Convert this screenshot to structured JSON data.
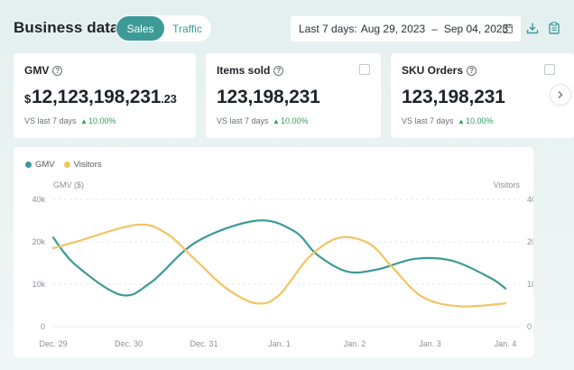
{
  "header": {
    "title": "Business data",
    "tabs": [
      {
        "label": "Sales",
        "active": true
      },
      {
        "label": "Traffic",
        "active": false
      }
    ],
    "date_range": {
      "prefix": "Last 7 days:",
      "start": "Aug 29, 2023",
      "separator": "–",
      "end": "Sep 04, 2023"
    },
    "icons": [
      "calendar-icon",
      "download-icon",
      "clipboard-icon"
    ]
  },
  "metrics": [
    {
      "title": "GMV",
      "currency": "$",
      "value": "12,123,198,231",
      "decimal": ".23",
      "compare_label": "VS last 7 days",
      "change": "10.00%",
      "selectable": false
    },
    {
      "title": "Items sold",
      "value": "123,198,231",
      "compare_label": "VS last 7 days",
      "change": "10.00%",
      "selectable": true
    },
    {
      "title": "SKU Orders",
      "value": "123,198,231",
      "compare_label": "VS last 7 days",
      "change": "10.00%",
      "selectable": true
    }
  ],
  "colors": {
    "accent": "#3d9a96",
    "gmv_line": "#3d9a96",
    "visitors_line": "#f2c462",
    "positive": "#2f9e5b"
  },
  "chart_data": {
    "type": "line",
    "legend": [
      "GMV",
      "Visitors"
    ],
    "legend_position": "top-left",
    "ylabel_left": "GMV ($)",
    "ylabel_right": "Visitors",
    "y_ticks": [
      "0",
      "10k",
      "20k",
      "40k"
    ],
    "ylim": [
      0,
      30000
    ],
    "grid": true,
    "x": [
      "Dec. 29",
      "Dec. 30",
      "Dec. 31",
      "Jan. 1",
      "Jan. 2",
      "Jan. 3",
      "Jan. 4"
    ],
    "series": [
      {
        "name": "GMV",
        "color": "#3d9a96",
        "points": [
          [
            0,
            21000
          ],
          [
            0.3,
            14500
          ],
          [
            0.9,
            7500
          ],
          [
            1.3,
            10500
          ],
          [
            1.9,
            20000
          ],
          [
            2.7,
            25000
          ],
          [
            3.2,
            22500
          ],
          [
            3.5,
            17000
          ],
          [
            3.9,
            13000
          ],
          [
            4.3,
            13500
          ],
          [
            4.8,
            16000
          ],
          [
            5.3,
            15500
          ],
          [
            5.8,
            11500
          ],
          [
            6,
            9000
          ]
        ]
      },
      {
        "name": "Visitors",
        "color": "#f2c462",
        "points": [
          [
            0,
            18500
          ],
          [
            0.3,
            20000
          ],
          [
            1.1,
            24000
          ],
          [
            1.5,
            22000
          ],
          [
            1.9,
            15500
          ],
          [
            2.3,
            9000
          ],
          [
            2.7,
            5500
          ],
          [
            3.0,
            7500
          ],
          [
            3.4,
            16500
          ],
          [
            3.8,
            21000
          ],
          [
            4.2,
            19500
          ],
          [
            4.5,
            14000
          ],
          [
            4.9,
            7000
          ],
          [
            5.4,
            4800
          ],
          [
            6,
            5500
          ]
        ]
      }
    ]
  }
}
